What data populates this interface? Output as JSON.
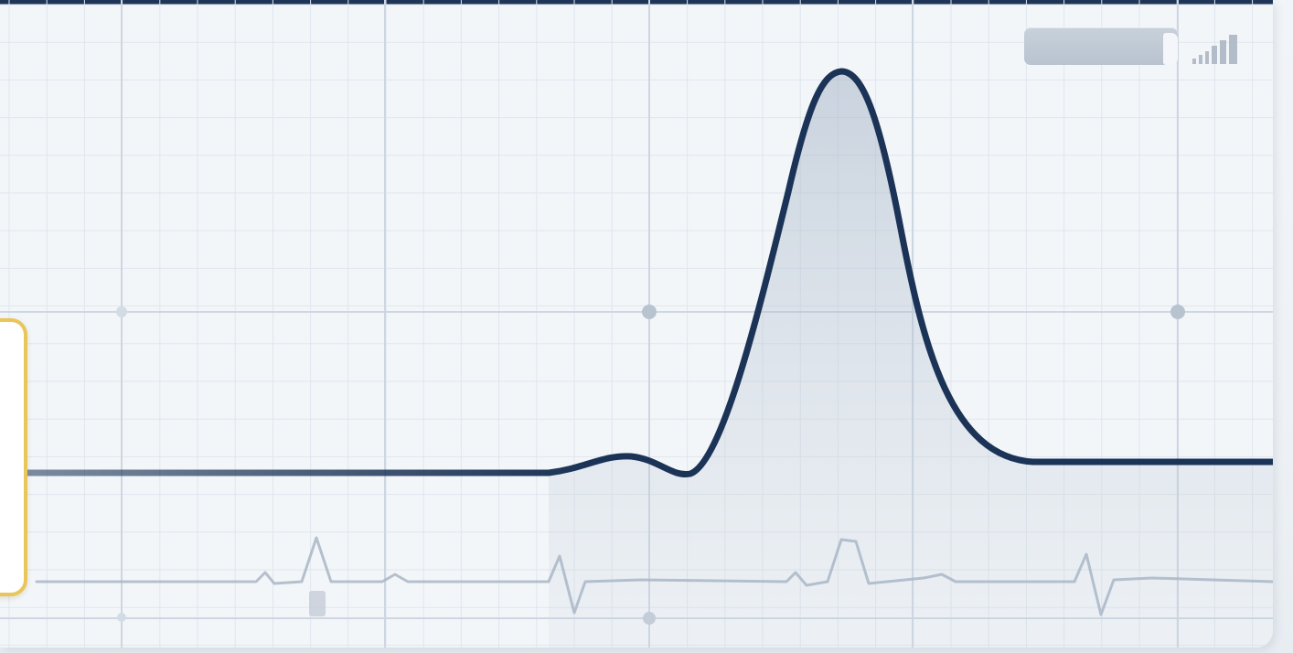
{
  "colors": {
    "trace": "#1b3356",
    "background_trace": "#a9b6c5",
    "grid_major": "#cdd6e1",
    "grid_minor": "#dfe6ee",
    "accent_card_border": "#e9c65a",
    "top_bar": "#1f3557"
  },
  "icons": {
    "signal": "signal-strength-icon",
    "scale_chip": "scale-indicator"
  },
  "monitor": {
    "main_trace_shape": "single large peak with small pre-wave",
    "background_trace_shape": "repeating ECG complexes",
    "grid": true
  }
}
